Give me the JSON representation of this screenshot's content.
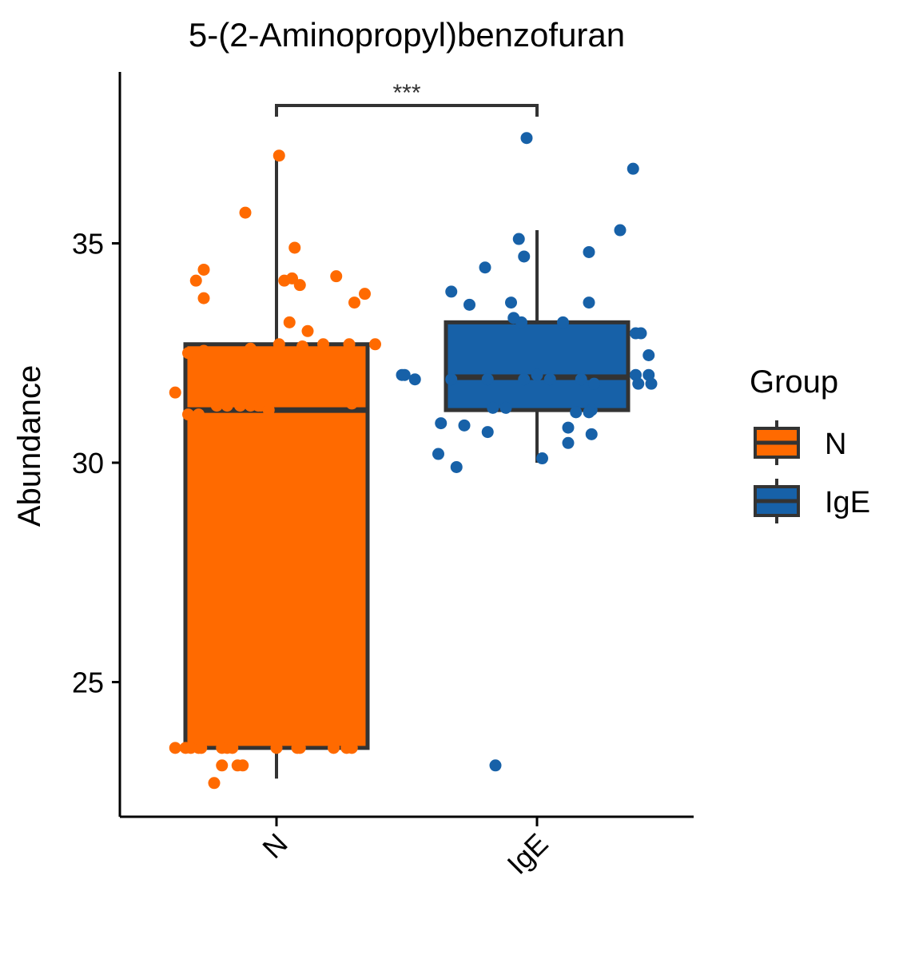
{
  "chart_data": {
    "type": "box",
    "title": "5-(2-Aminopropyl)benzofuran",
    "xlabel": "",
    "ylabel": "Abundance",
    "ylim": [
      22.2,
      38.5
    ],
    "yticks": [
      25,
      30,
      35
    ],
    "categories": [
      "N",
      "IgE"
    ],
    "colors": {
      "N": "#ff6a00",
      "IgE": "#1761a8",
      "outline": "#333333"
    },
    "boxes": [
      {
        "group": "N",
        "whisker_low": 22.8,
        "q1": 23.5,
        "median": 31.2,
        "q3": 32.7,
        "whisker_high": 37.0
      },
      {
        "group": "IgE",
        "whisker_low": 30.0,
        "q1": 31.2,
        "median": 31.95,
        "q3": 33.2,
        "whisker_high": 35.3
      }
    ],
    "points": {
      "N": [
        [
          -0.39,
          23.5
        ],
        [
          -0.35,
          23.5
        ],
        [
          -0.33,
          23.5
        ],
        [
          -0.3,
          23.5
        ],
        [
          -0.29,
          23.5
        ],
        [
          -0.21,
          23.5
        ],
        [
          -0.19,
          23.5
        ],
        [
          -0.17,
          23.5
        ],
        [
          0.0,
          23.5
        ],
        [
          0.08,
          23.5
        ],
        [
          0.09,
          23.5
        ],
        [
          0.22,
          23.5
        ],
        [
          0.27,
          23.5
        ],
        [
          0.29,
          23.5
        ],
        [
          -0.21,
          23.1
        ],
        [
          -0.15,
          23.1
        ],
        [
          -0.13,
          23.1
        ],
        [
          -0.24,
          22.7
        ],
        [
          -0.39,
          31.6
        ],
        [
          -0.34,
          31.1
        ],
        [
          -0.3,
          31.1
        ],
        [
          -0.23,
          31.3
        ],
        [
          -0.19,
          31.3
        ],
        [
          -0.14,
          31.3
        ],
        [
          -0.1,
          31.3
        ],
        [
          -0.07,
          31.3
        ],
        [
          -0.06,
          31.3
        ],
        [
          -0.03,
          31.2
        ],
        [
          0.29,
          31.35
        ],
        [
          -0.34,
          32.5
        ],
        [
          -0.28,
          32.55
        ],
        [
          -0.1,
          32.6
        ],
        [
          0.01,
          32.7
        ],
        [
          0.1,
          32.65
        ],
        [
          0.18,
          32.7
        ],
        [
          0.28,
          32.7
        ],
        [
          0.38,
          32.7
        ],
        [
          0.12,
          33.0
        ],
        [
          0.05,
          33.2
        ],
        [
          0.3,
          33.65
        ],
        [
          0.34,
          33.85
        ],
        [
          0.09,
          34.05
        ],
        [
          0.03,
          34.15
        ],
        [
          0.06,
          34.2
        ],
        [
          0.23,
          34.25
        ],
        [
          -0.31,
          34.15
        ],
        [
          -0.28,
          33.75
        ],
        [
          -0.28,
          34.4
        ],
        [
          0.07,
          34.9
        ],
        [
          -0.12,
          35.7
        ],
        [
          0.01,
          37.0
        ]
      ],
      "IgE": [
        [
          -0.52,
          32.0
        ],
        [
          -0.51,
          32.0
        ],
        [
          -0.47,
          31.9
        ],
        [
          -0.33,
          31.9
        ],
        [
          -0.19,
          31.9
        ],
        [
          -0.05,
          31.9
        ],
        [
          0.0,
          32.0
        ],
        [
          0.05,
          31.9
        ],
        [
          0.17,
          31.9
        ],
        [
          0.22,
          31.8
        ],
        [
          0.38,
          32.0
        ],
        [
          0.39,
          31.8
        ],
        [
          0.43,
          32.0
        ],
        [
          0.44,
          31.8
        ],
        [
          -0.17,
          31.25
        ],
        [
          -0.12,
          31.25
        ],
        [
          0.15,
          31.15
        ],
        [
          0.21,
          31.2
        ],
        [
          0.2,
          31.15
        ],
        [
          -0.37,
          30.9
        ],
        [
          -0.28,
          30.85
        ],
        [
          -0.19,
          30.7
        ],
        [
          0.12,
          30.8
        ],
        [
          0.21,
          30.65
        ],
        [
          -0.38,
          30.2
        ],
        [
          -0.31,
          29.9
        ],
        [
          0.02,
          30.1
        ],
        [
          0.12,
          30.45
        ],
        [
          0.38,
          32.95
        ],
        [
          0.4,
          32.95
        ],
        [
          0.43,
          32.45
        ],
        [
          0.1,
          33.2
        ],
        [
          -0.06,
          33.2
        ],
        [
          -0.09,
          33.3
        ],
        [
          -0.1,
          33.65
        ],
        [
          -0.26,
          33.6
        ],
        [
          0.2,
          33.65
        ],
        [
          -0.33,
          33.9
        ],
        [
          -0.2,
          34.45
        ],
        [
          -0.05,
          34.7
        ],
        [
          -0.07,
          35.1
        ],
        [
          0.2,
          34.8
        ],
        [
          0.32,
          35.3
        ],
        [
          0.37,
          36.7
        ],
        [
          -0.04,
          37.4
        ],
        [
          -0.16,
          23.1
        ]
      ]
    },
    "significance": {
      "from": "N",
      "to": "IgE",
      "label": "***"
    },
    "legend": {
      "title": "Group",
      "position": "right",
      "items": [
        {
          "label": "N",
          "color": "#ff6a00"
        },
        {
          "label": "IgE",
          "color": "#1761a8"
        }
      ]
    }
  }
}
